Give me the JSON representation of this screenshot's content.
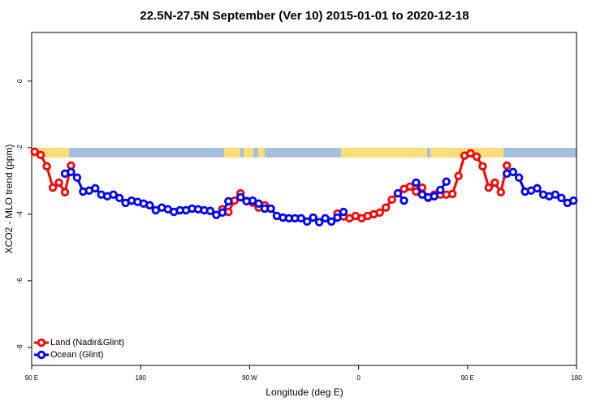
{
  "chart_data": {
    "type": "line",
    "title": "22.5N-27.5N September (Ver 10)   2015-01-01 to 2020-12-18",
    "x_label": "Longitude (deg E)",
    "y_label": "XCO2 - MLO trend (ppm)",
    "xlim": [
      90,
      540
    ],
    "xticks": [
      {
        "value": 90,
        "label": "90 E"
      },
      180,
      {
        "value": 270,
        "label": "90 W"
      },
      {
        "value": 360,
        "label": "0"
      },
      {
        "value": 450,
        "label": "90 E"
      },
      180
    ],
    "ylim": [
      -8.54,
      1.46
    ],
    "yticks": [
      0,
      -2,
      -4,
      -6,
      -8
    ],
    "legend": "bottom-left",
    "x": [
      92.5,
      97.5,
      102.5,
      107.5,
      112.5,
      117.5,
      122.5,
      127.5,
      132.5,
      137.5,
      142.5,
      147.5,
      152.5,
      157.5,
      162.5,
      167.5,
      172.5,
      177.5,
      182.5,
      187.5,
      192.5,
      197.5,
      202.5,
      207.5,
      212.5,
      217.5,
      222.5,
      227.5,
      232.5,
      237.5,
      242.5,
      247.5,
      252.5,
      257.5,
      262.5,
      267.5,
      272.5,
      277.5,
      282.5,
      287.5,
      292.5,
      297.5,
      302.5,
      307.5,
      312.5,
      317.5,
      322.5,
      327.5,
      332.5,
      337.5,
      342.5,
      347.5,
      352.5,
      357.5,
      362.5,
      367.5,
      372.5,
      377.5,
      382.5,
      387.5,
      392.5,
      397.5,
      402.5,
      407.5,
      412.5,
      417.5,
      422.5,
      427.5,
      432.5,
      437.5,
      442.5,
      447.5,
      452.5,
      457.5,
      462.5,
      467.5,
      472.5,
      477.5,
      482.5,
      487.5,
      492.5,
      497.5,
      502.5,
      507.5,
      512.5,
      517.5,
      522.5,
      527.5,
      532.5,
      537.5
    ],
    "series": [
      {
        "name": "Land (Nadir&Glint)",
        "color": "#ff0000",
        "values": [
          -2.12,
          -2.22,
          -2.56,
          -3.2,
          -3.05,
          -3.34,
          -2.54,
          null,
          null,
          null,
          null,
          null,
          null,
          null,
          null,
          null,
          null,
          null,
          null,
          null,
          null,
          null,
          null,
          null,
          null,
          null,
          null,
          null,
          null,
          null,
          null,
          -3.85,
          -3.93,
          -3.59,
          -3.37,
          -3.6,
          -3.65,
          -3.8,
          -3.73,
          null,
          null,
          null,
          null,
          null,
          null,
          null,
          null,
          null,
          null,
          null,
          -3.98,
          -4.07,
          -4.12,
          -4.05,
          -4.12,
          -4.05,
          -4.0,
          -3.95,
          -3.8,
          -3.56,
          -3.37,
          -3.24,
          -3.17,
          -3.32,
          -3.2,
          -3.51,
          -3.41,
          -3.41,
          -3.41,
          -3.39,
          -2.85,
          -2.24,
          -2.17,
          -2.27,
          -2.56,
          -3.2,
          -3.05,
          -3.34,
          -2.54,
          null,
          null,
          null,
          null,
          null,
          null,
          null,
          null,
          null,
          null,
          null
        ]
      },
      {
        "name": "Ocean (Glint)",
        "color": "#0000ff",
        "values": [
          null,
          null,
          null,
          null,
          null,
          -2.78,
          -2.73,
          -2.9,
          -3.32,
          -3.29,
          -3.22,
          -3.41,
          -3.46,
          -3.41,
          -3.51,
          -3.66,
          -3.59,
          -3.63,
          -3.68,
          -3.73,
          -3.88,
          -3.8,
          -3.85,
          -3.93,
          -3.88,
          -3.88,
          -3.83,
          -3.85,
          -3.88,
          -3.9,
          -4.02,
          -3.95,
          -3.61,
          null,
          -3.49,
          -3.61,
          -3.59,
          -3.68,
          -3.83,
          -3.83,
          -4.05,
          -4.1,
          -4.12,
          -4.12,
          -4.12,
          -4.22,
          -4.1,
          -4.24,
          -4.12,
          -4.22,
          -4.1,
          -3.93,
          null,
          null,
          null,
          null,
          null,
          null,
          null,
          null,
          -3.37,
          -3.59,
          null,
          -3.05,
          -3.41,
          -3.49,
          -3.46,
          -3.27,
          -3.02,
          null,
          null,
          null,
          null,
          null,
          null,
          null,
          null,
          null,
          -2.78,
          -2.73,
          -2.9,
          -3.32,
          -3.29,
          -3.22,
          -3.41,
          -3.46,
          -3.41,
          -3.51,
          -3.66,
          -3.59
        ]
      }
    ]
  }
}
